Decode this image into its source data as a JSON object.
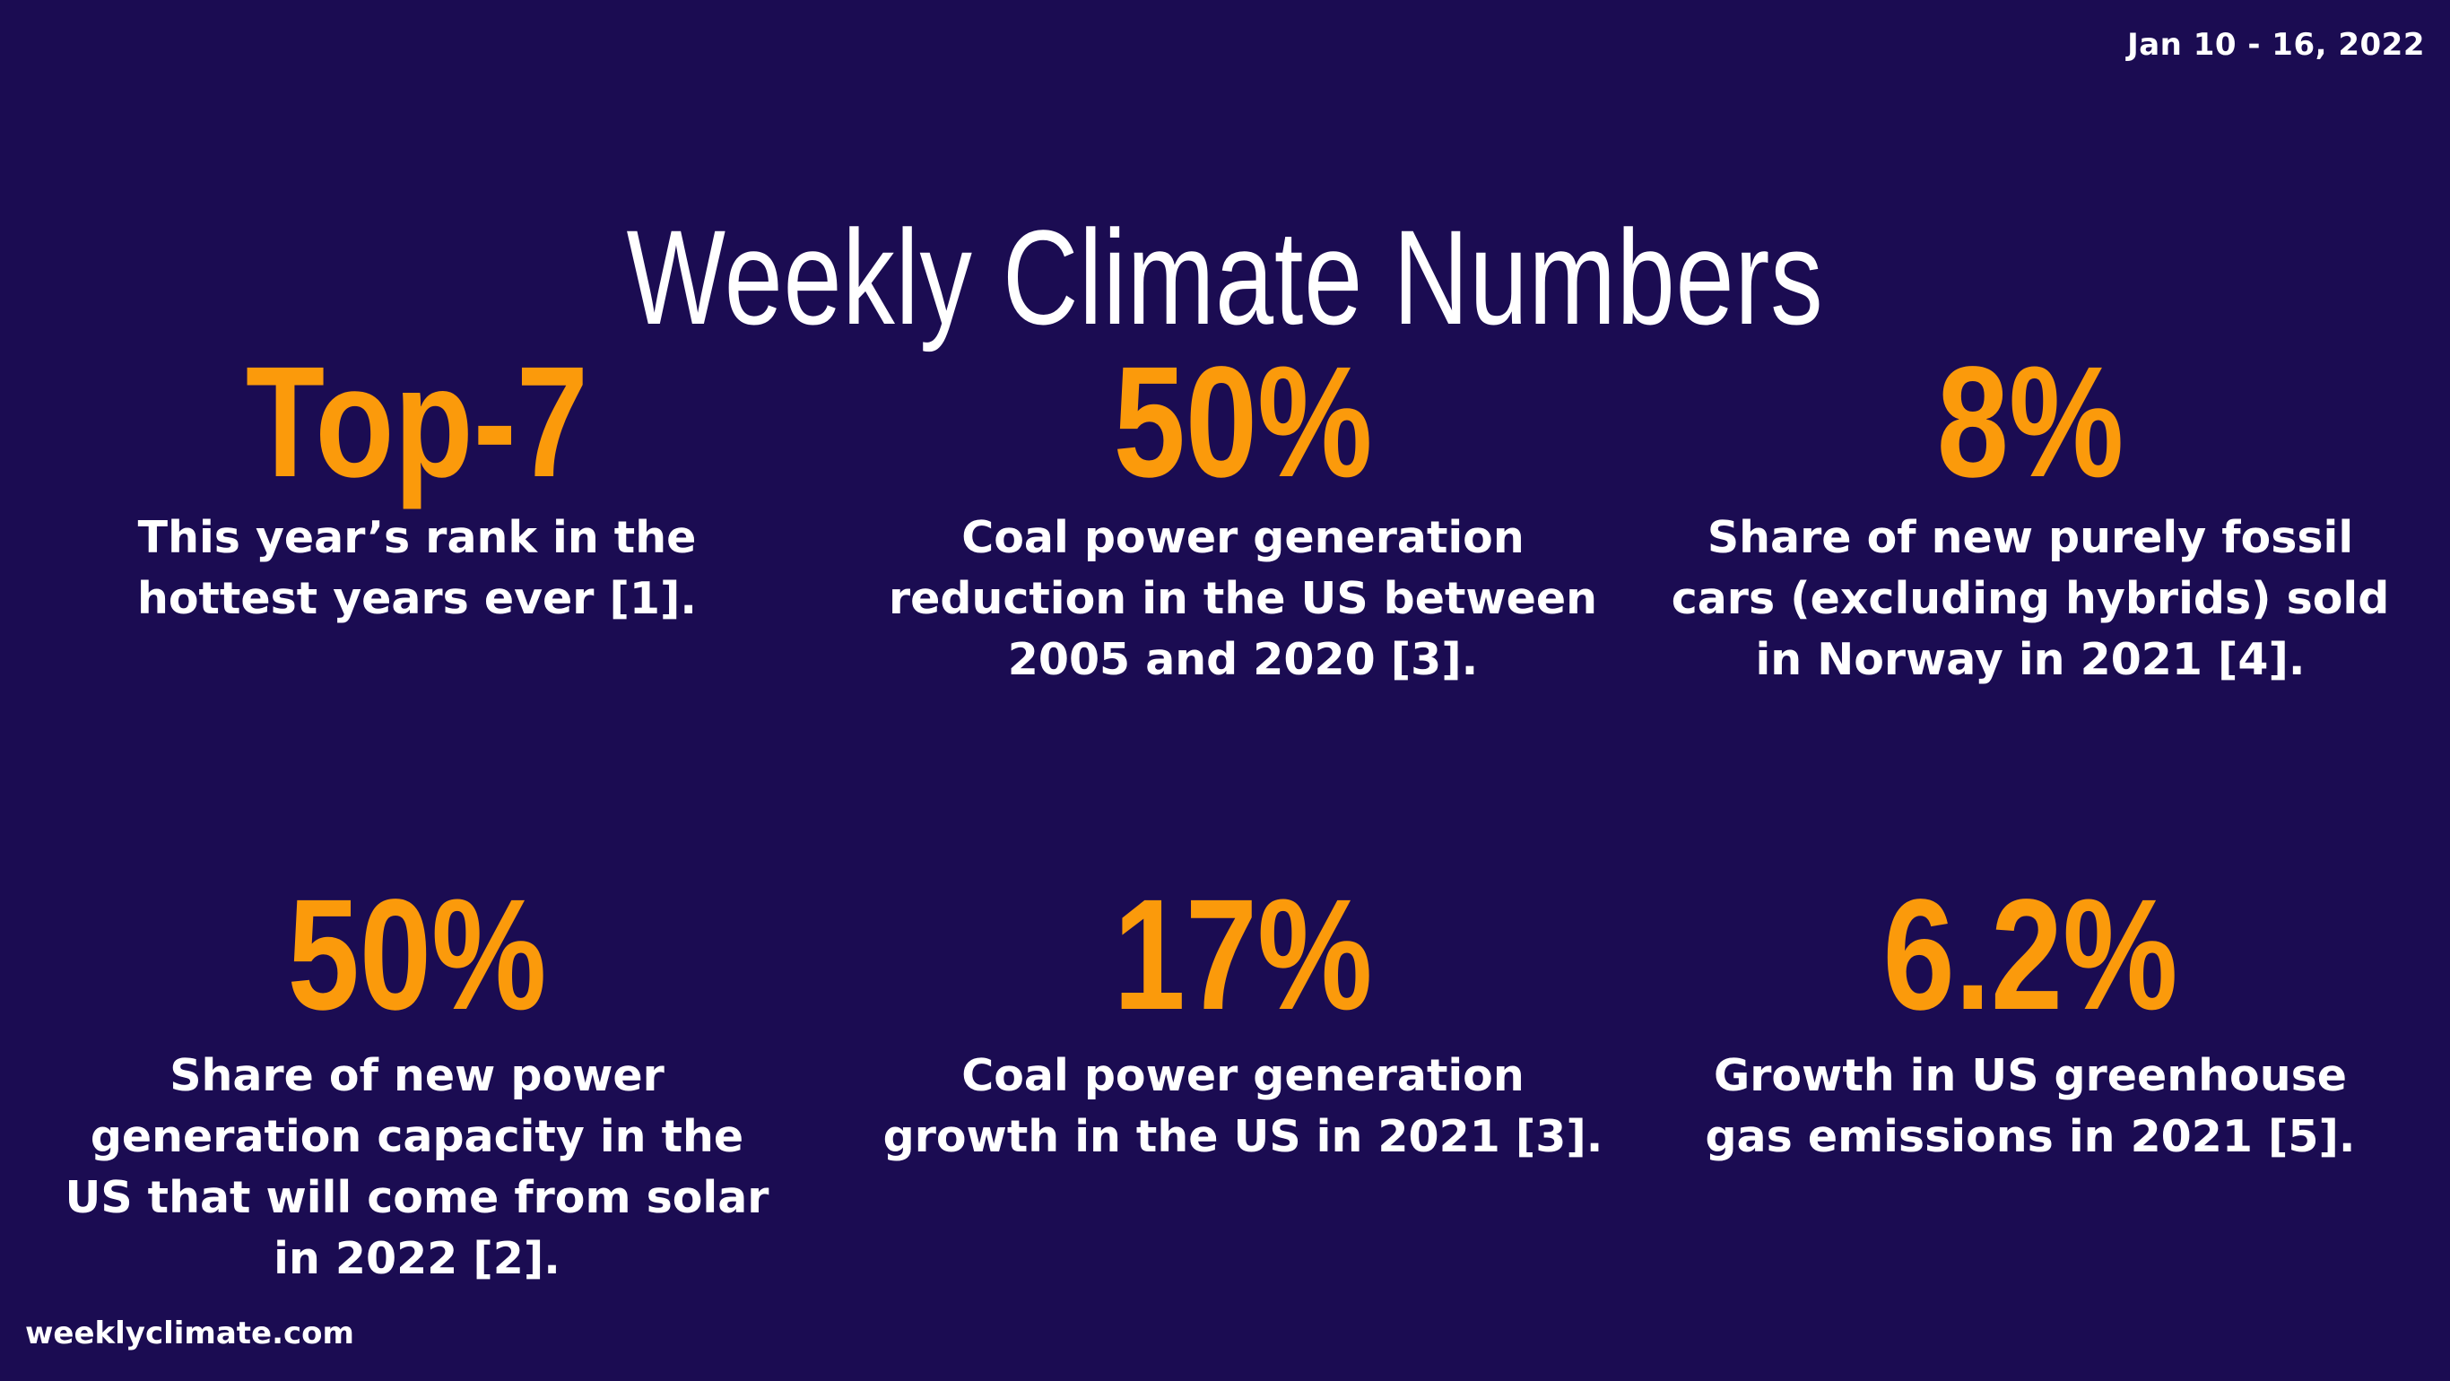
{
  "header": {
    "date_range": "Jan 10 - 16, 2022",
    "title": "Weekly Climate Numbers"
  },
  "stats": [
    {
      "value": "Top-7",
      "description": "This year’s rank in the hottest years ever [1]."
    },
    {
      "value": "50%",
      "description": "Coal power generation reduction in the US between 2005 and 2020 [3]."
    },
    {
      "value": "8%",
      "description": "Share of new purely fossil cars (excluding hybrids) sold in Norway in 2021 [4]."
    },
    {
      "value": "50%",
      "description": "Share of new power generation capacity in the US that will come from solar in 2022 [2]."
    },
    {
      "value": "17%",
      "description": "Coal power generation growth in the US in 2021 [3]."
    },
    {
      "value": "6.2%",
      "description": "Growth in US greenhouse gas emissions in 2021 [5]."
    }
  ],
  "footer": {
    "site": "weeklyclimate.com"
  },
  "colors": {
    "background": "#1b0c52",
    "accent": "#fb9a0b",
    "text": "#ffffff"
  }
}
